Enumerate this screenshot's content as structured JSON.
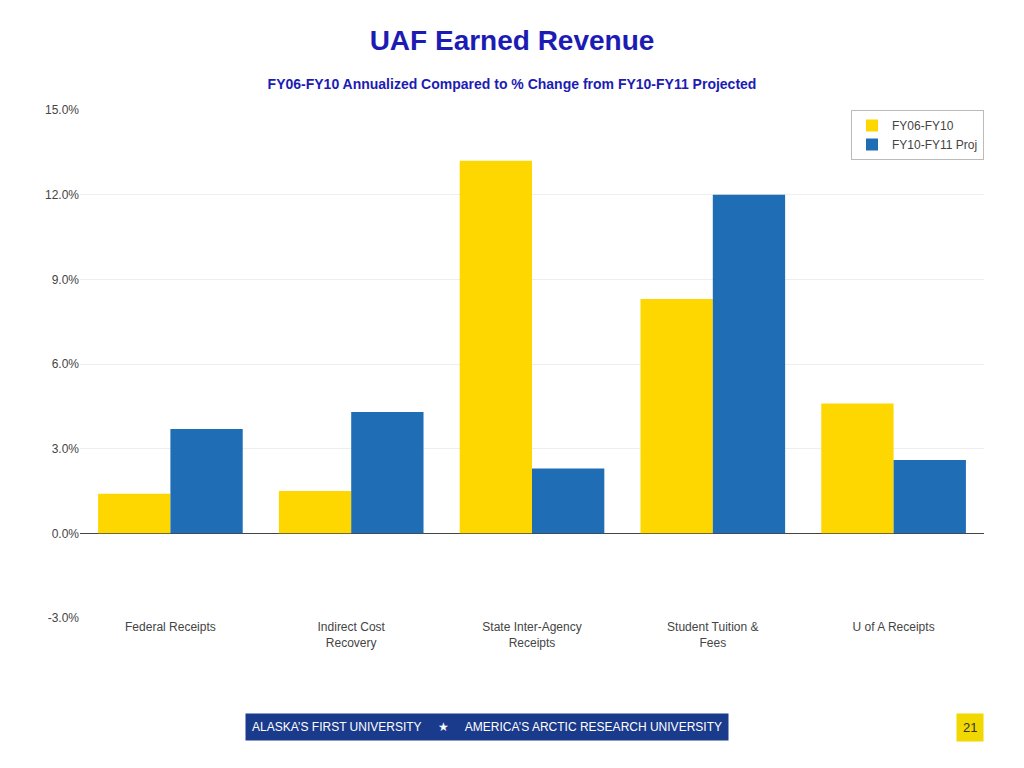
{
  "chart_data": {
    "type": "bar",
    "title": "UAF Earned Revenue",
    "subtitle": "FY06-FY10 Annualized Compared to % Change from FY10-FY11 Projected",
    "categories": [
      "Federal Receipts",
      "Indirect Cost\nRecovery",
      "State Inter-Agency\nReceipts",
      "Student Tuition &\nFees",
      "U of A Receipts"
    ],
    "series": [
      {
        "name": "FY06-FY10",
        "color": "#FFD700",
        "values": [
          1.4,
          1.5,
          13.2,
          8.3,
          4.6
        ]
      },
      {
        "name": "FY10-FY11 Proj",
        "color": "#1F6DB5",
        "values": [
          3.7,
          4.3,
          2.3,
          12.0,
          2.6
        ]
      }
    ],
    "ylim": [
      -3.0,
      15.0
    ],
    "yticks": [
      {
        "value": -3.0,
        "label": "-3.0%"
      },
      {
        "value": 0.0,
        "label": "0.0%"
      },
      {
        "value": 3.0,
        "label": "3.0%"
      },
      {
        "value": 6.0,
        "label": "6.0%"
      },
      {
        "value": 9.0,
        "label": "9.0%"
      },
      {
        "value": 12.0,
        "label": "12.0%"
      },
      {
        "value": 15.0,
        "label": "15.0%"
      }
    ],
    "grid": true,
    "legend": "upper right",
    "annotations": [
      "ALASKA’S FIRST UNIVERSITY     ★     AMERICA’S ARCTIC RESEARCH UNIVERSITY",
      "21"
    ]
  }
}
